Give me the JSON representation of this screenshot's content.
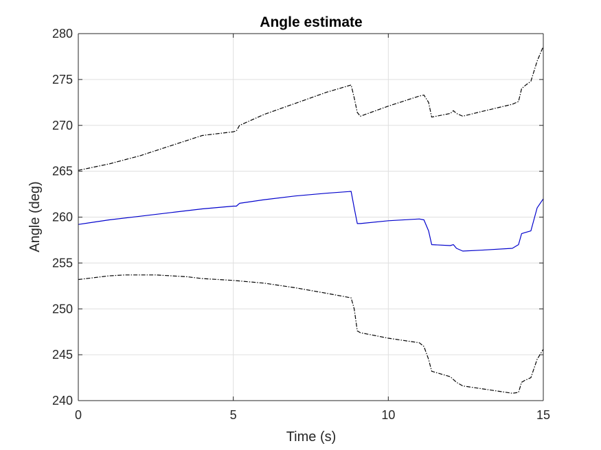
{
  "chart_data": {
    "type": "line",
    "title": "Angle estimate",
    "xlabel": "Time (s)",
    "ylabel": "Angle (deg)",
    "xlim": [
      0,
      15
    ],
    "ylim": [
      240,
      280
    ],
    "xticks": [
      0,
      5,
      10,
      15
    ],
    "yticks": [
      240,
      245,
      250,
      255,
      260,
      265,
      270,
      275,
      280
    ],
    "grid": true,
    "legend": "none",
    "series": [
      {
        "style": "dash-dot",
        "color": "#000000",
        "x": [
          0,
          1,
          2,
          3,
          4,
          5,
          5.1,
          5.2,
          6,
          7,
          8,
          8.8,
          8.9,
          9.0,
          9.1,
          10,
          11,
          11.15,
          11.3,
          11.4,
          12,
          12.1,
          12.2,
          12.4,
          13,
          14,
          14.2,
          14.3,
          14.4,
          14.6,
          14.8,
          15
        ],
        "y": [
          265.1,
          265.8,
          266.7,
          267.8,
          268.9,
          269.3,
          269.4,
          270.0,
          271.2,
          272.4,
          273.6,
          274.4,
          273.0,
          271.4,
          271.0,
          272.1,
          273.2,
          273.3,
          272.5,
          270.9,
          271.3,
          271.6,
          271.3,
          271.0,
          271.5,
          272.3,
          272.6,
          274.0,
          274.3,
          274.8,
          277.0,
          278.6
        ]
      },
      {
        "style": "solid",
        "color": "#0000cc",
        "x": [
          0,
          1,
          2,
          3,
          4,
          5,
          5.1,
          5.2,
          6,
          7,
          8,
          8.8,
          8.9,
          9.0,
          9.1,
          10,
          11,
          11.15,
          11.3,
          11.4,
          12,
          12.1,
          12.2,
          12.4,
          13,
          14,
          14.2,
          14.3,
          14.4,
          14.6,
          14.8,
          15
        ],
        "y": [
          259.2,
          259.7,
          260.1,
          260.5,
          260.9,
          261.2,
          261.2,
          261.5,
          261.9,
          262.3,
          262.6,
          262.8,
          261.0,
          259.3,
          259.3,
          259.6,
          259.8,
          259.7,
          258.5,
          257.0,
          256.9,
          257.0,
          256.6,
          256.3,
          256.4,
          256.6,
          257.0,
          258.2,
          258.3,
          258.5,
          261.0,
          262.0
        ]
      },
      {
        "style": "dash-dot",
        "color": "#000000",
        "x": [
          0,
          0.5,
          1,
          1.5,
          2,
          2.5,
          3,
          3.5,
          4,
          5,
          6,
          7,
          8,
          8.8,
          8.9,
          9.0,
          9.1,
          10,
          11,
          11.15,
          11.3,
          11.4,
          12,
          12.2,
          12.4,
          13,
          14,
          14.2,
          14.3,
          14.4,
          14.6,
          14.8,
          15
        ],
        "y": [
          253.2,
          253.4,
          253.6,
          253.7,
          253.7,
          253.7,
          253.6,
          253.5,
          253.3,
          253.1,
          252.8,
          252.3,
          251.7,
          251.2,
          250.0,
          247.6,
          247.4,
          246.8,
          246.3,
          245.9,
          244.5,
          243.2,
          242.6,
          242.0,
          241.6,
          241.3,
          240.8,
          240.9,
          242.0,
          242.2,
          242.5,
          244.5,
          245.6
        ]
      }
    ]
  }
}
